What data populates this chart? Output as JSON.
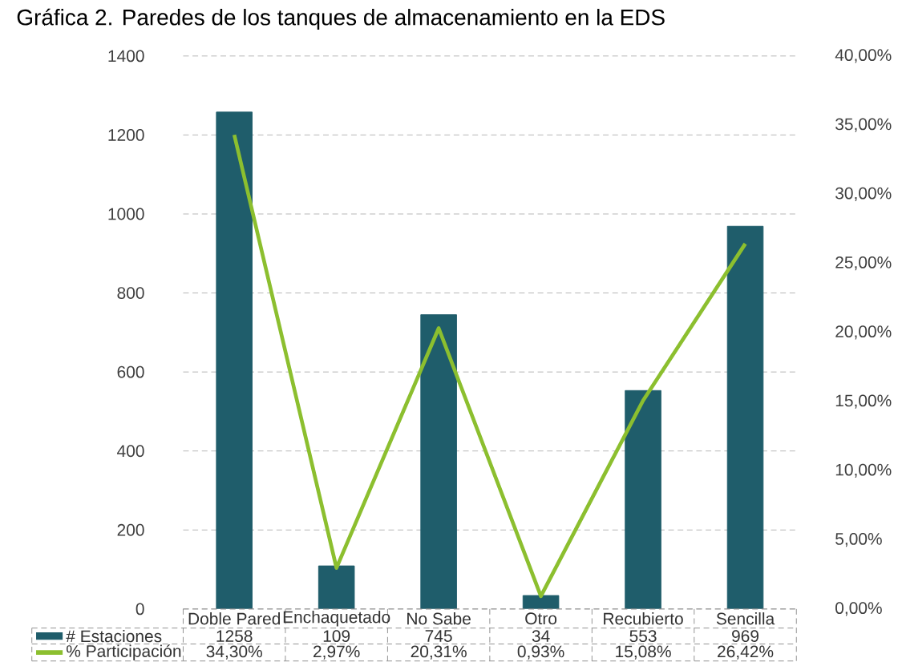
{
  "chart_data": {
    "type": "bar",
    "title": "Gráfica 2. Paredes de los tanques de almacenamiento en la EDS",
    "categories": [
      "Doble Pared",
      "Enchaquetado",
      "No Sabe",
      "Otro",
      "Recubierto",
      "Sencilla"
    ],
    "series": [
      {
        "name": "# Estaciones",
        "color": "#1f5d6b",
        "values": [
          1258,
          109,
          745,
          34,
          553,
          969
        ],
        "value_labels": [
          "1258",
          "109",
          "745",
          "34",
          "553",
          "969"
        ]
      },
      {
        "name": "% Participación",
        "type": "line",
        "axis": "y2",
        "color": "#8cbf2f",
        "values": [
          34.3,
          2.97,
          20.31,
          0.93,
          15.08,
          26.42
        ],
        "value_labels": [
          "34,30%",
          "2,97%",
          "20,31%",
          "0,93%",
          "15,08%",
          "26,42%"
        ]
      }
    ],
    "ylim": [
      0,
      1400
    ],
    "yticks": [
      0,
      200,
      400,
      600,
      800,
      1000,
      1200,
      1400
    ],
    "y2lim": [
      0,
      40
    ],
    "y2ticks": [
      {
        "value": 0,
        "label": "0,00%"
      },
      {
        "value": 5,
        "label": "5,00%"
      },
      {
        "value": 10,
        "label": "10,00%"
      },
      {
        "value": 15,
        "label": "15,00%"
      },
      {
        "value": 20,
        "label": "20,00%"
      },
      {
        "value": 25,
        "label": "25,00%"
      },
      {
        "value": 30,
        "label": "30,00%"
      },
      {
        "value": 35,
        "label": "35,00%"
      },
      {
        "value": 40,
        "label": "40,00%"
      }
    ],
    "grid": "y",
    "legend": "bottom",
    "marker": "none",
    "line_style": "solid"
  }
}
